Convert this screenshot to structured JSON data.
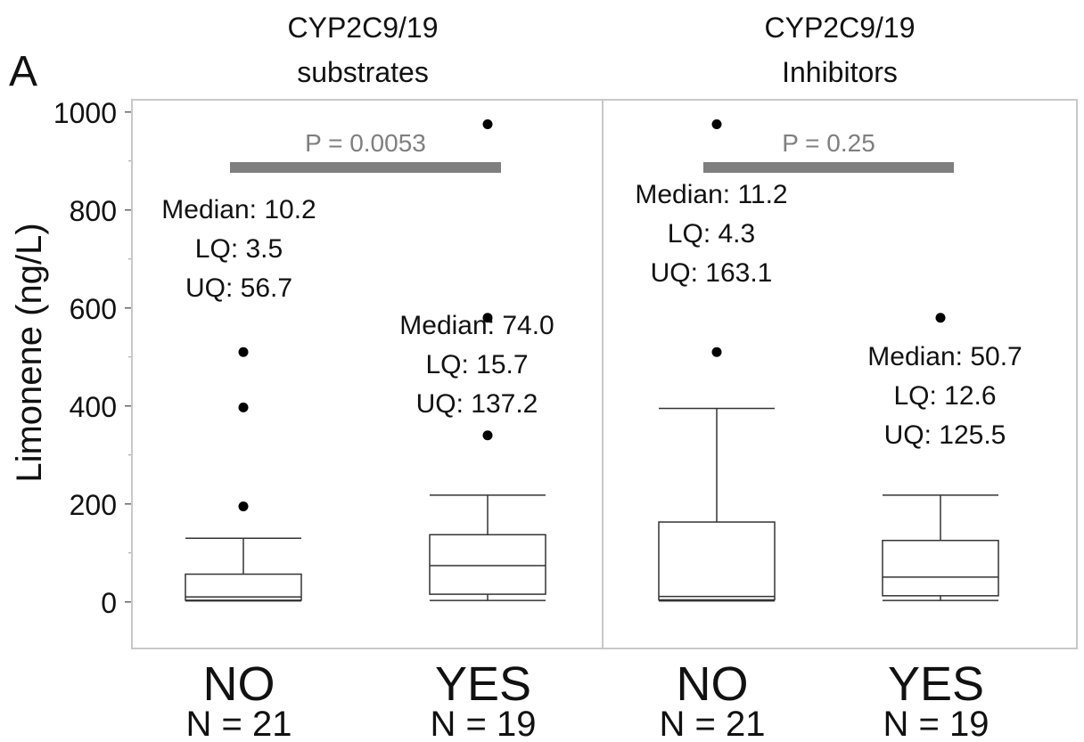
{
  "figure_letter": "A",
  "colors": {
    "box_stroke": "#333333",
    "panel_border": "#c8c8c8",
    "significance_bar": "#7f7f7f",
    "p_text": "#7f7f7f",
    "text": "#111111"
  },
  "chart_data": {
    "type": "box",
    "ylabel": "Limonene (ng/L)",
    "ylim": [
      -95,
      1025
    ],
    "yticks": [
      0,
      200,
      400,
      600,
      800,
      1000
    ],
    "grid": false,
    "panels": [
      {
        "title_line1": "CYP2C9/19",
        "title_line2": "substrates",
        "p_label": "P = 0.0053",
        "groups": [
          {
            "label": "NO",
            "n_label": "N = 21",
            "min": 2,
            "q1": 3.5,
            "median": 10.2,
            "q3": 56.7,
            "max": 130,
            "outliers": [
              195,
              397,
              510
            ],
            "ann": [
              "Median: 10.2",
              "LQ: 3.5",
              "UQ: 56.7"
            ]
          },
          {
            "label": "YES",
            "n_label": "N = 19",
            "min": 3,
            "q1": 15.7,
            "median": 74.0,
            "q3": 137.2,
            "max": 218,
            "outliers": [
              340,
              580,
              975
            ],
            "ann": [
              "Median: 74.0",
              "LQ: 15.7",
              "UQ: 137.2"
            ]
          }
        ]
      },
      {
        "title_line1": "CYP2C9/19",
        "title_line2": "Inhibitors",
        "p_label": "P = 0.25",
        "groups": [
          {
            "label": "NO",
            "n_label": "N = 21",
            "min": 2,
            "q1": 4.3,
            "median": 11.2,
            "q3": 163.1,
            "max": 395,
            "outliers": [
              510,
              975
            ],
            "ann": [
              "Median: 11.2",
              "LQ: 4.3",
              "UQ: 163.1"
            ]
          },
          {
            "label": "YES",
            "n_label": "N = 19",
            "min": 3,
            "q1": 12.6,
            "median": 50.7,
            "q3": 125.5,
            "max": 218,
            "outliers": [
              580
            ],
            "ann": [
              "Median: 50.7",
              "LQ: 12.6",
              "UQ: 125.5"
            ]
          }
        ]
      }
    ]
  }
}
